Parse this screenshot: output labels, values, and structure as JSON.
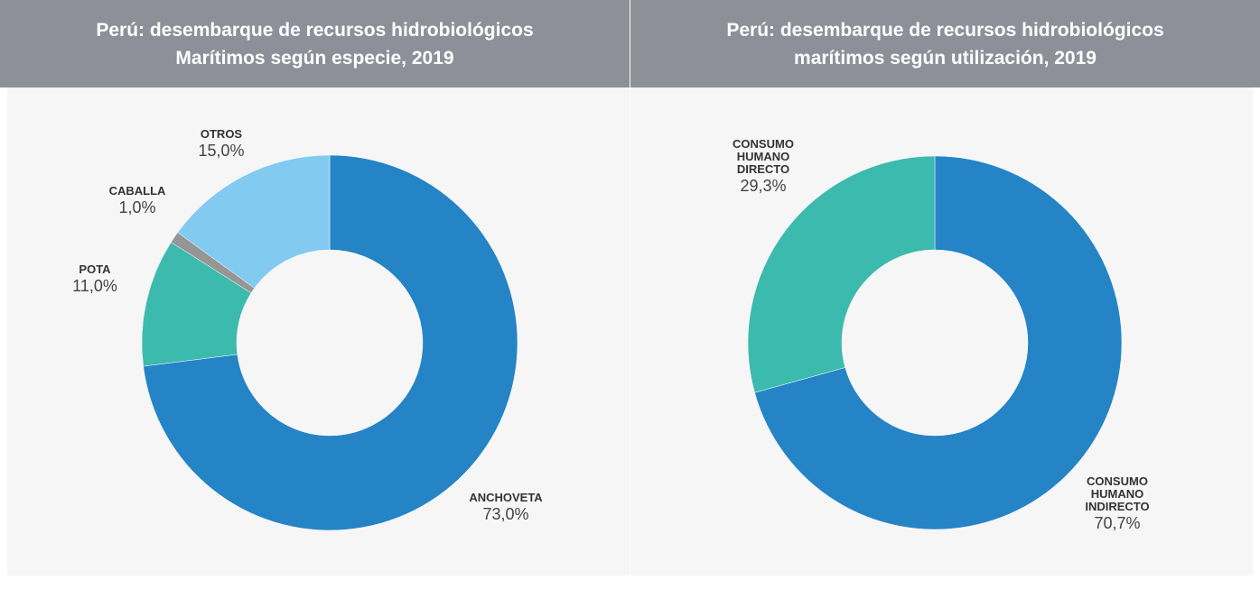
{
  "chart_data": [
    {
      "type": "pie",
      "donut": true,
      "title": [
        "Perú: desembarque de recursos hidrobiológicos",
        "Marítimos según especie, 2019"
      ],
      "categories": [
        "ANCHOVETA",
        "POTA",
        "CABALLA",
        "OTROS"
      ],
      "values": [
        73,
        11,
        1,
        15
      ],
      "value_labels": [
        "73,0%",
        "11,0%",
        "1,0%",
        "15,0%"
      ],
      "colors": [
        "#2584c6",
        "#3cbaad",
        "#969696",
        "#82caf0"
      ]
    },
    {
      "type": "pie",
      "donut": true,
      "title": [
        "Perú: desembarque de recursos hidrobiológicos",
        "marítimos según utilización, 2019"
      ],
      "categories": [
        "CONSUMO HUMANO INDIRECTO",
        "CONSUMO HUMANO DIRECTO"
      ],
      "values": [
        70.7,
        29.3
      ],
      "value_labels": [
        "70,7%",
        "29,3%"
      ],
      "colors": [
        "#2584c6",
        "#3cbaad"
      ]
    }
  ]
}
